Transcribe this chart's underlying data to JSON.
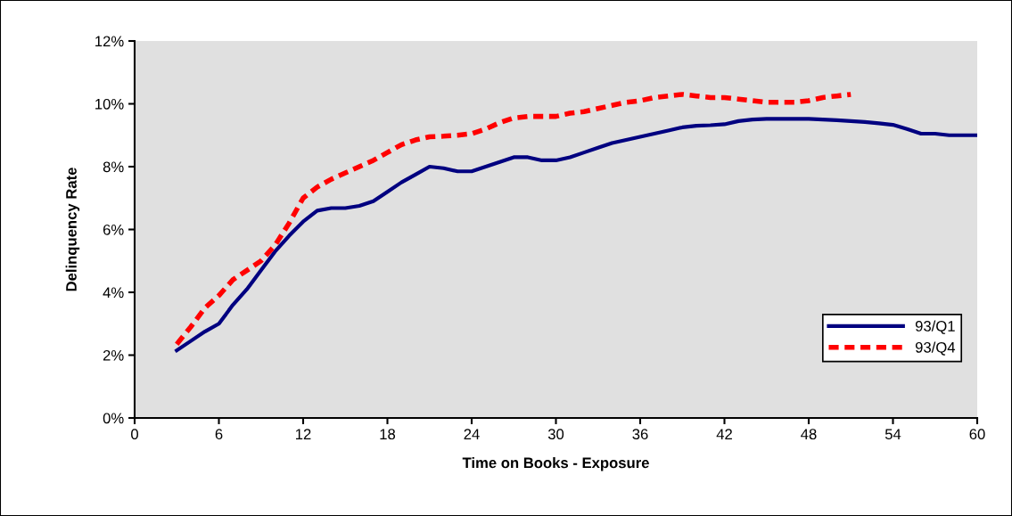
{
  "chart_data": {
    "type": "line",
    "xlabel": "Time on Books - Exposure",
    "ylabel": "Delinquency Rate",
    "xlim": [
      0,
      60
    ],
    "xticks": [
      0,
      6,
      12,
      18,
      24,
      30,
      36,
      42,
      48,
      54,
      60
    ],
    "ylim": [
      0,
      12
    ],
    "yticks": [
      {
        "value": 0,
        "label": "0%"
      },
      {
        "value": 2,
        "label": "2%"
      },
      {
        "value": 4,
        "label": "4%"
      },
      {
        "value": 6,
        "label": "6%"
      },
      {
        "value": 8,
        "label": "8%"
      },
      {
        "value": 10,
        "label": "10%"
      },
      {
        "value": 12,
        "label": "12%"
      }
    ],
    "grid": false,
    "legend": "right",
    "marker": "none",
    "series": [
      {
        "name": "93/Q1",
        "color": "#000080",
        "line_style": "solid",
        "x": [
          3,
          4,
          5,
          6,
          7,
          8,
          9,
          10,
          11,
          12,
          13,
          14,
          15,
          16,
          17,
          18,
          19,
          20,
          21,
          22,
          23,
          24,
          25,
          26,
          27,
          28,
          29,
          30,
          31,
          32,
          33,
          34,
          35,
          36,
          37,
          38,
          39,
          40,
          41,
          42,
          43,
          44,
          45,
          46,
          47,
          48,
          49,
          50,
          51,
          52,
          53,
          54,
          55,
          56,
          57,
          58,
          59,
          60
        ],
        "values": [
          2.15,
          2.45,
          2.75,
          3.0,
          3.6,
          4.1,
          4.7,
          5.3,
          5.8,
          6.25,
          6.6,
          6.68,
          6.68,
          6.75,
          6.9,
          7.2,
          7.5,
          7.75,
          8.0,
          7.95,
          7.85,
          7.85,
          8.0,
          8.15,
          8.3,
          8.3,
          8.2,
          8.2,
          8.3,
          8.45,
          8.6,
          8.75,
          8.85,
          8.95,
          9.05,
          9.15,
          9.25,
          9.3,
          9.32,
          9.35,
          9.45,
          9.5,
          9.52,
          9.52,
          9.52,
          9.52,
          9.5,
          9.48,
          9.45,
          9.42,
          9.38,
          9.33,
          9.2,
          9.05,
          9.05,
          9.0,
          9.0,
          9.0
        ]
      },
      {
        "name": "93/Q4",
        "color": "#ff0000",
        "line_style": "dashed",
        "x": [
          3,
          4,
          5,
          6,
          7,
          8,
          9,
          10,
          11,
          12,
          13,
          14,
          15,
          16,
          17,
          18,
          19,
          20,
          21,
          22,
          23,
          24,
          25,
          26,
          27,
          28,
          29,
          30,
          31,
          32,
          33,
          34,
          35,
          36,
          37,
          38,
          39,
          40,
          41,
          42,
          43,
          44,
          45,
          46,
          47,
          48,
          49,
          50,
          51
        ],
        "values": [
          2.35,
          2.9,
          3.5,
          3.9,
          4.4,
          4.7,
          5.0,
          5.5,
          6.2,
          7.0,
          7.35,
          7.6,
          7.8,
          8.0,
          8.2,
          8.45,
          8.7,
          8.85,
          8.95,
          8.97,
          9.0,
          9.05,
          9.2,
          9.4,
          9.55,
          9.6,
          9.6,
          9.6,
          9.7,
          9.75,
          9.85,
          9.95,
          10.05,
          10.1,
          10.2,
          10.25,
          10.3,
          10.25,
          10.2,
          10.2,
          10.15,
          10.1,
          10.05,
          10.05,
          10.05,
          10.1,
          10.2,
          10.25,
          10.3
        ]
      }
    ]
  }
}
